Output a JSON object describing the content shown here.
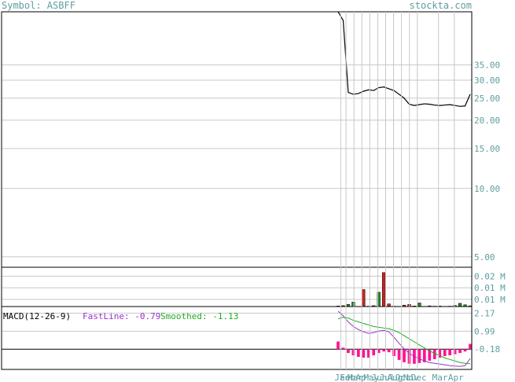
{
  "header": {
    "symbol_text": "Symbol: ASBFF",
    "site": "stockta.com"
  },
  "colors": {
    "header_text": "#5f9ea0",
    "axis_text": "#5f9ea0",
    "grid": "#c8c8c8",
    "price_line": "#000000",
    "volume_up": "#228b22",
    "volume_down": "#cc2222",
    "fastline": "#9933cc",
    "smoothed": "#22aa22",
    "histogram": "#ff1493"
  },
  "chart_data": [
    {
      "type": "line",
      "panel": "price",
      "scale": "log",
      "y_ticks": [
        "35.00",
        "30.00",
        "25.00",
        "20.00",
        "15.00",
        "10.00",
        "5.00"
      ],
      "x_tick_labels": [
        "Jan",
        "Feb",
        "Mar",
        "Apr",
        "May",
        "Jun",
        "Jul",
        "Aug",
        "Oct",
        "Nov",
        "Dec",
        "Mar",
        "Apr"
      ],
      "ylim": [
        4.5,
        60
      ],
      "series": [
        {
          "values": [
            60,
            55,
            26.5,
            26,
            26.2,
            26.8,
            27.2,
            27.0,
            27.8,
            28.0,
            27.5,
            27.0,
            26.0,
            25.0,
            23.5,
            23.2,
            23.4,
            23.6,
            23.5,
            23.3,
            23.2,
            23.3,
            23.4,
            23.2,
            23.0,
            23.1,
            26.0
          ]
        }
      ],
      "grid": true
    },
    {
      "type": "bar",
      "panel": "volume",
      "y_ticks": [
        "0.02 M",
        "0.01 M",
        "0.01 M"
      ],
      "ylim": [
        0,
        0.022
      ],
      "values": [
        0.0003,
        0.0005,
        0.0012,
        0.0025,
        0.0001,
        0.0095,
        0.0002,
        0.0005,
        0.008,
        0.019,
        0.0015,
        0.0002,
        0.0001,
        0.0008,
        0.0012,
        0.0003,
        0.002,
        0.0001,
        0.0004,
        0.0002,
        0.0003,
        0.0001,
        0.0002,
        0.0006,
        0.0018,
        0.001,
        0.0004
      ],
      "up": [
        false,
        false,
        true,
        true,
        false,
        false,
        false,
        false,
        true,
        false,
        false,
        false,
        false,
        false,
        false,
        false,
        true,
        false,
        false,
        false,
        false,
        false,
        false,
        true,
        true,
        true,
        false
      ]
    },
    {
      "type": "line",
      "panel": "macd",
      "title": "MACD(12-26-9)",
      "fastline_label": "FastLine: -0.79",
      "smoothed_label": "Smoothed: -1.13",
      "y_ticks": [
        "2.17",
        "0.99",
        "-0.18"
      ],
      "ylim": [
        -1.5,
        2.6
      ],
      "series": [
        {
          "name": "FastLine",
          "values": [
            2.3,
            2.0,
            1.6,
            1.3,
            1.1,
            0.95,
            0.85,
            0.9,
            1.0,
            1.05,
            0.95,
            0.6,
            0.2,
            -0.15,
            -0.45,
            -0.65,
            -0.8,
            -0.95,
            -1.05,
            -1.1,
            -1.15,
            -1.2,
            -1.25,
            -1.28,
            -1.3,
            -1.25,
            -0.79
          ]
        },
        {
          "name": "Smoothed",
          "values": [
            1.8,
            1.9,
            1.85,
            1.7,
            1.6,
            1.5,
            1.4,
            1.3,
            1.25,
            1.2,
            1.15,
            1.05,
            0.9,
            0.7,
            0.5,
            0.3,
            0.1,
            -0.1,
            -0.3,
            -0.45,
            -0.6,
            -0.75,
            -0.85,
            -0.95,
            -1.05,
            -1.1,
            -1.13
          ]
        }
      ],
      "histogram": [
        0.5,
        0.1,
        -0.25,
        -0.4,
        -0.5,
        -0.55,
        -0.55,
        -0.4,
        -0.25,
        -0.15,
        -0.2,
        -0.45,
        -0.7,
        -0.85,
        -0.95,
        -0.95,
        -0.9,
        -0.85,
        -0.75,
        -0.65,
        -0.55,
        -0.45,
        -0.4,
        -0.33,
        -0.25,
        -0.15,
        0.34
      ]
    }
  ]
}
